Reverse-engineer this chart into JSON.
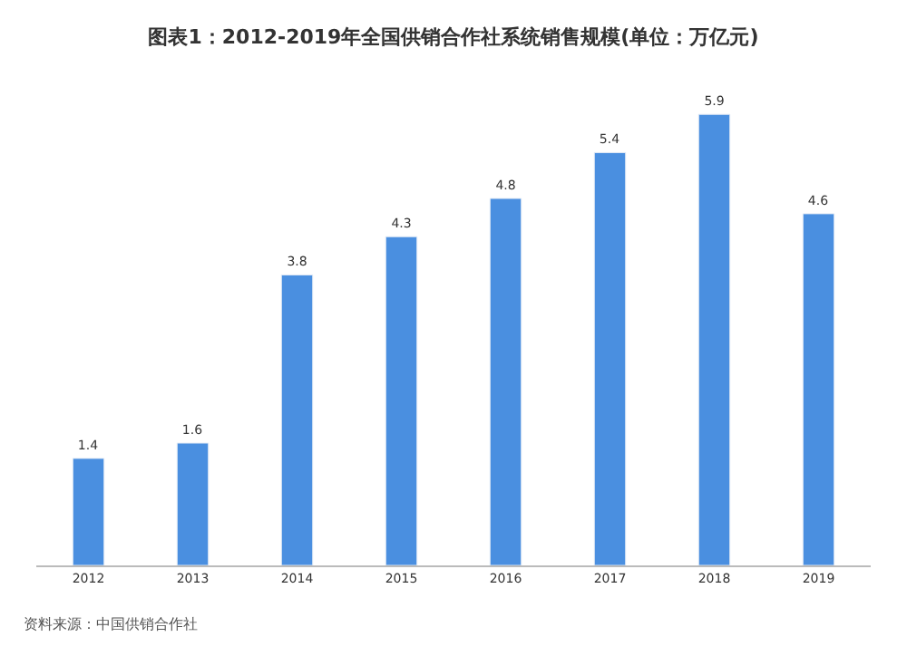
{
  "chart_data": {
    "type": "bar",
    "title": "图表1：2012-2019年全国供销合作社系统销售规模(单位：万亿元)",
    "categories": [
      "2012",
      "2013",
      "2014",
      "2015",
      "2016",
      "2017",
      "2018",
      "2019"
    ],
    "values": [
      1.4,
      1.6,
      3.8,
      4.3,
      4.8,
      5.4,
      5.9,
      4.6
    ],
    "color": "#4a8fe0",
    "data_labels": true,
    "annotations": [
      "资料来源：中国供销合作社"
    ]
  }
}
